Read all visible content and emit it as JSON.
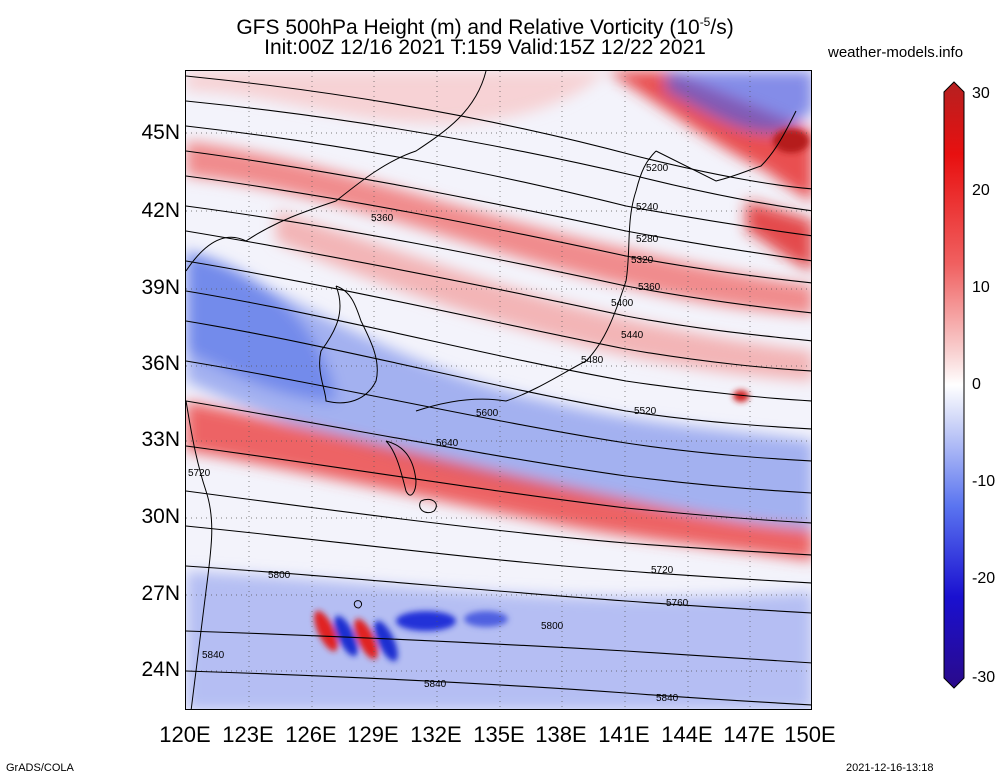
{
  "header": {
    "title_line1": "GFS 500hPa Height (m) and Relative Vorticity (10",
    "title_sup": "-5",
    "title_line1_end": "/s)",
    "title_line2": "Init:00Z 12/16 2021 T:159 Valid:15Z 12/22 2021",
    "site": "weather-models.info"
  },
  "map": {
    "lat_labels": [
      "45N",
      "42N",
      "39N",
      "36N",
      "33N",
      "30N",
      "27N",
      "24N"
    ],
    "lon_labels": [
      "120E",
      "123E",
      "126E",
      "129E",
      "132E",
      "135E",
      "138E",
      "141E",
      "144E",
      "147E",
      "150E"
    ],
    "contour_labels": [
      "5200",
      "5240",
      "5280",
      "5320",
      "5360",
      "5360",
      "5400",
      "5440",
      "5480",
      "5520",
      "5600",
      "5640",
      "5720",
      "5720",
      "5760",
      "5800",
      "5800",
      "5840",
      "5840",
      "5840"
    ],
    "colors": {
      "positive": "#e8231f",
      "negative": "#2b3fd9",
      "neutral": "#ffffff",
      "contour": "#000000",
      "coast": "#000000"
    }
  },
  "colorbar": {
    "labels": [
      "30",
      "20",
      "10",
      "0",
      "-10",
      "-20",
      "-30"
    ],
    "colors": [
      "#2a0a8a",
      "#1a10d0",
      "#5a74f0",
      "#cfd6f8",
      "#ffffff",
      "#f8cccc",
      "#f06060",
      "#e81010",
      "#b52020"
    ]
  },
  "footer": {
    "left": "GrADS/COLA",
    "right": "2021-12-16-13:18"
  }
}
